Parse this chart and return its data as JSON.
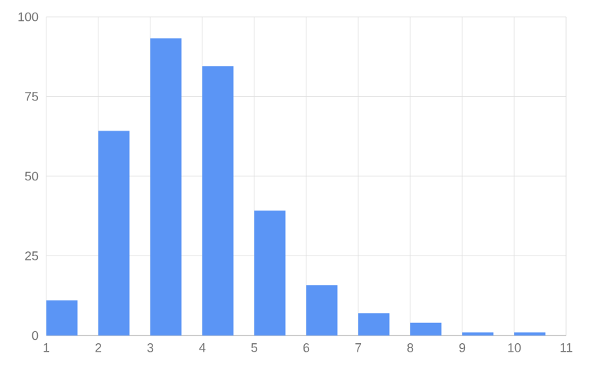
{
  "chart_data": {
    "type": "bar",
    "x": [
      1.3,
      2.3,
      3.3,
      4.3,
      5.3,
      6.3,
      7.3,
      8.3,
      9.3,
      10.3
    ],
    "values": [
      11,
      64.2,
      93.3,
      84.5,
      39.2,
      15.8,
      7,
      4,
      1,
      1
    ],
    "color": "#5b95f5",
    "xlim": [
      1,
      11
    ],
    "ylim": [
      0,
      100
    ],
    "xticks": [
      1,
      2,
      3,
      4,
      5,
      6,
      7,
      8,
      9,
      10,
      11
    ],
    "yticks": [
      0,
      25,
      50,
      75,
      100
    ],
    "grid": true
  }
}
